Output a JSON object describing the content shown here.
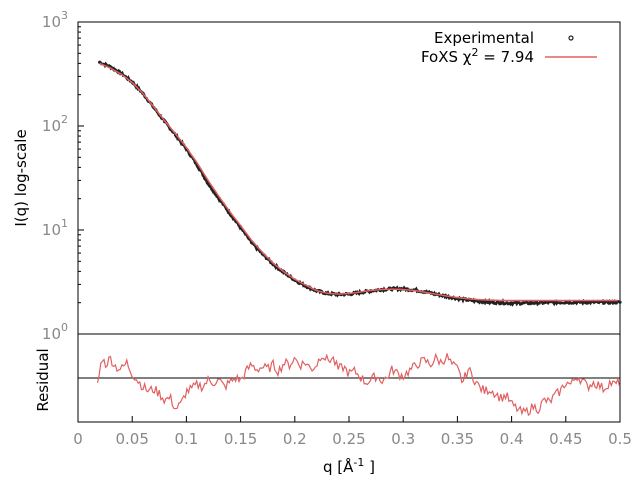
{
  "chart_data": [
    {
      "type": "scatter",
      "panel": "main",
      "xlabel": "q [Å",
      "xlabel_sup": "-1",
      "xlabel_close": " ]",
      "ylabel": "I(q) log-scale",
      "y_scale": "log",
      "xlim": [
        0,
        0.5
      ],
      "ylim": [
        1,
        1000
      ],
      "x_ticks": [
        "0",
        "0.05",
        "0.1",
        "0.15",
        "0.2",
        "0.25",
        "0.3",
        "0.35",
        "0.4",
        "0.45",
        "0.5"
      ],
      "y_ticks": [
        {
          "base": "10",
          "exp": "0",
          "value": 1
        },
        {
          "base": "10",
          "exp": "1",
          "value": 10
        },
        {
          "base": "10",
          "exp": "2",
          "value": 100
        },
        {
          "base": "10",
          "exp": "3",
          "value": 1000
        }
      ],
      "legend_placement": "top-right",
      "series": [
        {
          "name": "Experimental",
          "kind": "points",
          "color": "#222222",
          "x": [
            0.02,
            0.03,
            0.04,
            0.05,
            0.06,
            0.07,
            0.08,
            0.09,
            0.1,
            0.11,
            0.12,
            0.13,
            0.14,
            0.15,
            0.16,
            0.17,
            0.18,
            0.19,
            0.2,
            0.21,
            0.22,
            0.23,
            0.24,
            0.25,
            0.26,
            0.27,
            0.28,
            0.29,
            0.3,
            0.31,
            0.32,
            0.33,
            0.34,
            0.35,
            0.36,
            0.37,
            0.38,
            0.39,
            0.4,
            0.41,
            0.42,
            0.43,
            0.44,
            0.45,
            0.46,
            0.47,
            0.48,
            0.49,
            0.5
          ],
          "y": [
            410,
            370,
            320,
            265,
            205,
            150,
            110,
            82,
            60,
            42,
            28,
            20,
            14.5,
            10.5,
            7.6,
            5.9,
            4.7,
            3.9,
            3.3,
            2.9,
            2.6,
            2.45,
            2.4,
            2.42,
            2.5,
            2.6,
            2.68,
            2.72,
            2.72,
            2.66,
            2.55,
            2.42,
            2.3,
            2.2,
            2.12,
            2.06,
            2.02,
            2.0,
            1.98,
            1.98,
            1.99,
            2.0,
            2.01,
            2.02,
            2.02,
            2.02,
            2.02,
            2.02,
            2.02
          ]
        },
        {
          "name": "FoXS χ",
          "name_sup": "2",
          "name_suffix": " = 7.94",
          "kind": "line",
          "color": "#e06060",
          "x": [
            0.02,
            0.03,
            0.04,
            0.05,
            0.06,
            0.07,
            0.08,
            0.09,
            0.1,
            0.11,
            0.12,
            0.13,
            0.14,
            0.15,
            0.16,
            0.17,
            0.18,
            0.19,
            0.2,
            0.21,
            0.22,
            0.23,
            0.24,
            0.25,
            0.26,
            0.27,
            0.28,
            0.29,
            0.3,
            0.31,
            0.32,
            0.33,
            0.34,
            0.35,
            0.36,
            0.37,
            0.38,
            0.39,
            0.4,
            0.41,
            0.42,
            0.43,
            0.44,
            0.45,
            0.46,
            0.47,
            0.48,
            0.49,
            0.5
          ],
          "y": [
            400,
            360,
            315,
            262,
            205,
            152,
            112,
            84,
            62,
            44,
            30,
            21,
            15,
            11,
            8,
            6.1,
            4.8,
            3.95,
            3.35,
            2.95,
            2.62,
            2.46,
            2.42,
            2.45,
            2.53,
            2.62,
            2.68,
            2.7,
            2.68,
            2.62,
            2.52,
            2.42,
            2.32,
            2.24,
            2.18,
            2.14,
            2.12,
            2.1,
            2.1,
            2.1,
            2.1,
            2.1,
            2.1,
            2.1,
            2.1,
            2.1,
            2.1,
            2.1,
            2.1
          ]
        }
      ]
    },
    {
      "type": "line",
      "panel": "residual",
      "ylabel": "Residual",
      "xlim": [
        0,
        0.5
      ],
      "ylim": [
        -1,
        1
      ],
      "baseline": 0,
      "series": [
        {
          "kind": "line",
          "color": "#e06060",
          "x": [
            0.018,
            0.02,
            0.022,
            0.025,
            0.03,
            0.035,
            0.04,
            0.045,
            0.05,
            0.055,
            0.06,
            0.065,
            0.07,
            0.075,
            0.08,
            0.085,
            0.09,
            0.095,
            0.1,
            0.105,
            0.11,
            0.115,
            0.12,
            0.125,
            0.13,
            0.135,
            0.14,
            0.145,
            0.15,
            0.155,
            0.16,
            0.165,
            0.17,
            0.175,
            0.18,
            0.185,
            0.19,
            0.195,
            0.2,
            0.205,
            0.21,
            0.215,
            0.22,
            0.225,
            0.23,
            0.235,
            0.24,
            0.245,
            0.25,
            0.255,
            0.26,
            0.265,
            0.27,
            0.275,
            0.28,
            0.285,
            0.29,
            0.295,
            0.3,
            0.305,
            0.31,
            0.315,
            0.32,
            0.325,
            0.33,
            0.335,
            0.34,
            0.345,
            0.35,
            0.355,
            0.36,
            0.365,
            0.37,
            0.375,
            0.38,
            0.385,
            0.39,
            0.395,
            0.4,
            0.405,
            0.41,
            0.415,
            0.42,
            0.425,
            0.43,
            0.435,
            0.44,
            0.445,
            0.45,
            0.455,
            0.46,
            0.465,
            0.47,
            0.475,
            0.48,
            0.485,
            0.49,
            0.495,
            0.5
          ],
          "y": [
            -0.1,
            0.1,
            0.5,
            0.3,
            0.45,
            0.25,
            0.2,
            0.35,
            0.1,
            -0.05,
            -0.2,
            -0.3,
            -0.25,
            -0.35,
            -0.5,
            -0.45,
            -0.7,
            -0.6,
            -0.3,
            -0.25,
            -0.15,
            -0.2,
            -0.05,
            -0.1,
            -0.05,
            -0.2,
            -0.1,
            0.0,
            -0.05,
            0.15,
            0.3,
            0.2,
            0.25,
            0.2,
            0.3,
            0.15,
            0.35,
            0.3,
            0.45,
            0.3,
            0.35,
            0.2,
            0.3,
            0.55,
            0.4,
            0.45,
            0.2,
            0.25,
            0.1,
            0.15,
            0.05,
            -0.1,
            -0.05,
            0.05,
            -0.05,
            0.0,
            0.2,
            0.1,
            0.05,
            0.15,
            0.25,
            0.35,
            0.4,
            0.3,
            0.45,
            0.35,
            0.5,
            0.3,
            0.2,
            -0.1,
            0.2,
            0.0,
            -0.2,
            -0.3,
            -0.25,
            -0.35,
            -0.45,
            -0.4,
            -0.6,
            -0.7,
            -0.8,
            -0.75,
            -0.65,
            -0.7,
            -0.5,
            -0.55,
            -0.4,
            -0.3,
            -0.1,
            -0.15,
            0.05,
            -0.05,
            -0.2,
            -0.1,
            -0.15,
            -0.25,
            -0.1,
            -0.15,
            -0.1
          ]
        }
      ]
    }
  ]
}
